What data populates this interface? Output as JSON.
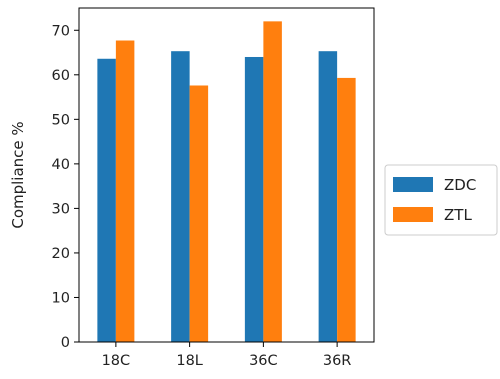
{
  "chart_data": {
    "type": "bar",
    "categories": [
      "18C",
      "18L",
      "36C",
      "36R"
    ],
    "series": [
      {
        "name": "ZDC",
        "values": [
          63.6,
          65.3,
          64.0,
          65.3
        ],
        "color": "#1f77b4"
      },
      {
        "name": "ZTL",
        "values": [
          67.7,
          57.6,
          72.0,
          59.3
        ],
        "color": "#ff7f0e"
      }
    ],
    "xlabel": "",
    "ylabel": "Compliance %",
    "ylim": [
      0,
      75
    ],
    "yticks": [
      0,
      10,
      20,
      30,
      40,
      50,
      60,
      70
    ],
    "grid": false,
    "legend_position": "right"
  }
}
